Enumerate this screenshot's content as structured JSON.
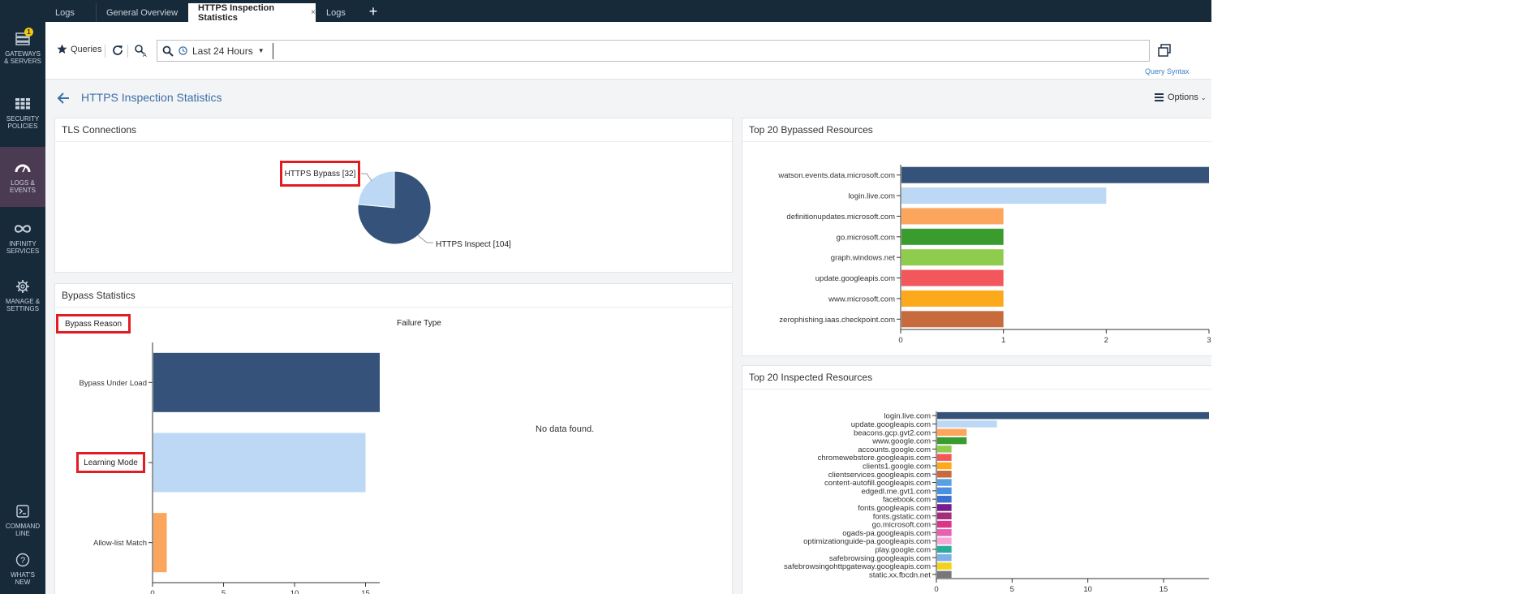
{
  "nav": {
    "items": [
      {
        "label": "GATEWAYS\n& SERVERS",
        "badge": "1"
      },
      {
        "label": "SECURITY\nPOLICIES"
      },
      {
        "label": "LOGS &\nEVENTS"
      },
      {
        "label": "INFINITY\nSERVICES"
      },
      {
        "label": "MANAGE &\nSETTINGS"
      },
      {
        "label": "COMMAND\nLINE"
      },
      {
        "label": "WHAT'S\nNEW"
      }
    ]
  },
  "tabs": [
    {
      "label": "Logs"
    },
    {
      "label": "General Overview"
    },
    {
      "label": "HTTPS Inspection Statistics",
      "close": "×"
    },
    {
      "label": "Logs"
    }
  ],
  "tab_add": "+",
  "query": {
    "queries_label": "Queries",
    "time_range": "Last 24 Hours",
    "search_value": "",
    "query_syntax": "Query Syntax"
  },
  "page": {
    "title": "HTTPS Inspection Statistics",
    "options_label": "Options"
  },
  "tls_panel": {
    "title": "TLS Connections",
    "pie": {
      "type": "pie",
      "slices": [
        {
          "label": "HTTPS Bypass [32]",
          "value": 32,
          "color": "#bcd8f5"
        },
        {
          "label": "HTTPS Inspect [104]",
          "value": 104,
          "color": "#35537a"
        }
      ]
    }
  },
  "bypass_panel": {
    "title": "Bypass Statistics",
    "reason_label": "Bypass Reason",
    "failure_label": "Failure Type",
    "no_data": "No data found."
  },
  "top_bypassed": {
    "title": "Top 20 Bypassed Resources"
  },
  "top_inspected": {
    "title": "Top 20 Inspected Resources"
  },
  "chart_data": [
    {
      "type": "pie",
      "title": "TLS Connections",
      "categories": [
        "HTTPS Bypass",
        "HTTPS Inspect"
      ],
      "values": [
        32,
        104
      ],
      "colors": [
        "#bcd8f5",
        "#35537a"
      ]
    },
    {
      "type": "bar",
      "orientation": "horizontal",
      "title": "Bypass Reason",
      "categories": [
        "Bypass Under Load",
        "Learning Mode",
        "Allow-list Match"
      ],
      "values": [
        16,
        15,
        1
      ],
      "colors": [
        "#35537a",
        "#bcd8f5",
        "#fca55c"
      ],
      "xlim": [
        0,
        16
      ],
      "xticks": [
        0,
        5,
        10,
        15
      ]
    },
    {
      "type": "bar",
      "orientation": "horizontal",
      "title": "Top 20 Bypassed Resources",
      "categories": [
        "watson.events.data.microsoft.com",
        "login.live.com",
        "definitionupdates.microsoft.com",
        "go.microsoft.com",
        "graph.windows.net",
        "update.googleapis.com",
        "www.microsoft.com",
        "zerophishing.iaas.checkpoint.com"
      ],
      "values": [
        3,
        2,
        1,
        1,
        1,
        1,
        1,
        1
      ],
      "colors": [
        "#35537a",
        "#bcd8f5",
        "#fca55c",
        "#3a9b2e",
        "#8fcc4e",
        "#f2575c",
        "#fca91b",
        "#c76a3c"
      ],
      "xlim": [
        0,
        3
      ],
      "xticks": [
        0,
        1,
        2,
        3
      ]
    },
    {
      "type": "bar",
      "orientation": "horizontal",
      "title": "Top 20 Inspected Resources",
      "categories": [
        "login.live.com",
        "update.googleapis.com",
        "beacons.gcp.gvt2.com",
        "www.google.com",
        "accounts.google.com",
        "chromewebstore.googleapis.com",
        "clients1.google.com",
        "clientservices.googleapis.com",
        "content-autofill.googleapis.com",
        "edgedl.me.gvt1.com",
        "facebook.com",
        "fonts.googleapis.com",
        "fonts.gstatic.com",
        "go.microsoft.com",
        "ogads-pa.googleapis.com",
        "optimizationguide-pa.googleapis.com",
        "play.google.com",
        "safebrowsing.googleapis.com",
        "safebrowsingohttpgateway.googleapis.com",
        "static.xx.fbcdn.net"
      ],
      "values": [
        18,
        4,
        2,
        2,
        1,
        1,
        1,
        1,
        1,
        1,
        1,
        1,
        1,
        1,
        1,
        1,
        1,
        1,
        1,
        1
      ],
      "colors": [
        "#35537a",
        "#bcd8f5",
        "#fca55c",
        "#3a9b2e",
        "#8fcc4e",
        "#f2575c",
        "#fca91b",
        "#c76a3c",
        "#5aa0e0",
        "#4a90e2",
        "#3b6fd1",
        "#7b1a8c",
        "#a0307a",
        "#d9368a",
        "#e860b0",
        "#f5a8d8",
        "#2aaba0",
        "#7db0e8",
        "#f2d21b",
        "#777777"
      ],
      "xlim": [
        0,
        18
      ],
      "xticks": [
        0,
        5,
        10,
        15
      ]
    }
  ]
}
